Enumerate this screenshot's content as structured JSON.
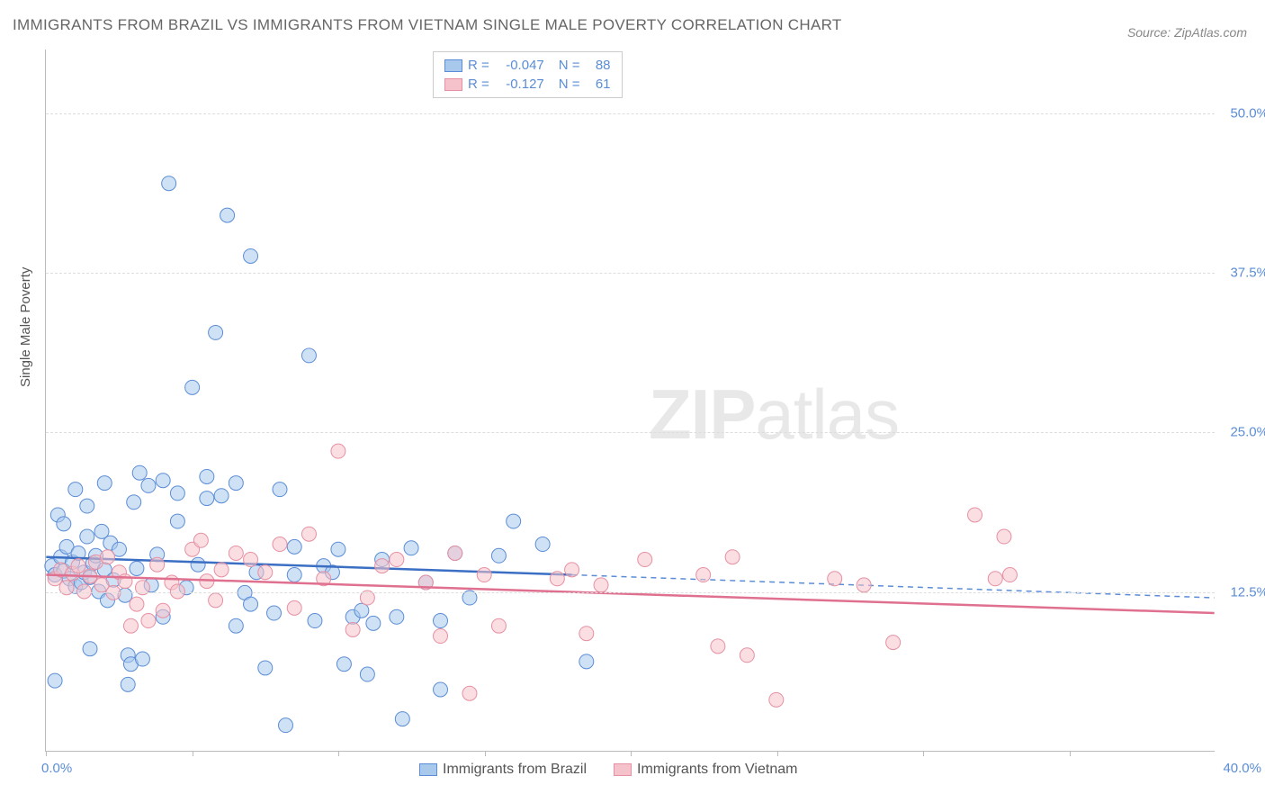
{
  "title": "IMMIGRANTS FROM BRAZIL VS IMMIGRANTS FROM VIETNAM SINGLE MALE POVERTY CORRELATION CHART",
  "source": "Source: ZipAtlas.com",
  "ylabel": "Single Male Poverty",
  "watermark_bold": "ZIP",
  "watermark_light": "atlas",
  "chart": {
    "type": "scatter",
    "xlim": [
      0,
      40
    ],
    "ylim": [
      0,
      55
    ],
    "yticks": [
      12.5,
      25.0,
      37.5,
      50.0
    ],
    "ytick_labels": [
      "12.5%",
      "25.0%",
      "37.5%",
      "50.0%"
    ],
    "xtick_left": "0.0%",
    "xtick_right": "40.0%",
    "xtick_marks": [
      0,
      5,
      10,
      15,
      20,
      25,
      30,
      35
    ],
    "background_color": "#ffffff",
    "grid_color": "#dddddd",
    "axis_color": "#bbbbbb",
    "tick_label_color": "#5b8dd6",
    "marker_radius": 8,
    "marker_opacity": 0.55,
    "line_width": 2.5,
    "dashed_line_width": 1.5
  },
  "series": [
    {
      "name": "Immigrants from Brazil",
      "color_fill": "#a8c8ec",
      "color_stroke": "#5b8dd6",
      "line_color": "#3b6fc4",
      "R": "-0.047",
      "N": "88",
      "trend_x1": 0,
      "trend_y1": 15.2,
      "trend_x2": 18,
      "trend_y2": 13.8,
      "trend_dash_x2": 40,
      "trend_dash_y2": 12.0,
      "points": [
        [
          0.2,
          14.5
        ],
        [
          0.3,
          13.8
        ],
        [
          0.5,
          15.2
        ],
        [
          0.6,
          14.1
        ],
        [
          0.7,
          16.0
        ],
        [
          0.8,
          13.5
        ],
        [
          0.9,
          14.8
        ],
        [
          1.0,
          12.9
        ],
        [
          1.1,
          15.5
        ],
        [
          1.2,
          13.2
        ],
        [
          1.3,
          14.0
        ],
        [
          1.4,
          16.8
        ],
        [
          1.5,
          13.6
        ],
        [
          1.6,
          14.7
        ],
        [
          1.7,
          15.3
        ],
        [
          1.8,
          12.5
        ],
        [
          1.9,
          17.2
        ],
        [
          2.0,
          14.2
        ],
        [
          2.1,
          11.8
        ],
        [
          2.2,
          16.3
        ],
        [
          2.3,
          13.4
        ],
        [
          2.5,
          15.8
        ],
        [
          2.7,
          12.2
        ],
        [
          2.8,
          7.5
        ],
        [
          2.9,
          6.8
        ],
        [
          3.0,
          19.5
        ],
        [
          3.1,
          14.3
        ],
        [
          3.3,
          7.2
        ],
        [
          3.5,
          20.8
        ],
        [
          3.6,
          13.0
        ],
        [
          3.8,
          15.4
        ],
        [
          4.0,
          10.5
        ],
        [
          4.2,
          44.5
        ],
        [
          4.5,
          20.2
        ],
        [
          4.8,
          12.8
        ],
        [
          5.0,
          28.5
        ],
        [
          5.2,
          14.6
        ],
        [
          5.5,
          21.5
        ],
        [
          5.8,
          32.8
        ],
        [
          6.0,
          20.0
        ],
        [
          6.2,
          42.0
        ],
        [
          6.5,
          9.8
        ],
        [
          6.8,
          12.4
        ],
        [
          7.0,
          38.8
        ],
        [
          7.2,
          14.0
        ],
        [
          7.5,
          6.5
        ],
        [
          7.8,
          10.8
        ],
        [
          8.0,
          20.5
        ],
        [
          8.2,
          2.0
        ],
        [
          8.5,
          13.8
        ],
        [
          9.0,
          31.0
        ],
        [
          9.2,
          10.2
        ],
        [
          9.5,
          14.5
        ],
        [
          10.0,
          15.8
        ],
        [
          10.2,
          6.8
        ],
        [
          10.5,
          10.5
        ],
        [
          10.8,
          11.0
        ],
        [
          11.2,
          10.0
        ],
        [
          11.5,
          15.0
        ],
        [
          12.0,
          10.5
        ],
        [
          12.2,
          2.5
        ],
        [
          12.5,
          15.9
        ],
        [
          13.0,
          13.2
        ],
        [
          13.5,
          4.8
        ],
        [
          14.0,
          15.5
        ],
        [
          15.5,
          15.3
        ],
        [
          16.0,
          18.0
        ],
        [
          17.0,
          16.2
        ],
        [
          18.5,
          7.0
        ],
        [
          0.4,
          18.5
        ],
        [
          0.6,
          17.8
        ],
        [
          1.0,
          20.5
        ],
        [
          1.4,
          19.2
        ],
        [
          2.0,
          21.0
        ],
        [
          3.2,
          21.8
        ],
        [
          4.0,
          21.2
        ],
        [
          0.3,
          5.5
        ],
        [
          1.5,
          8.0
        ],
        [
          2.8,
          5.2
        ],
        [
          4.5,
          18.0
        ],
        [
          5.5,
          19.8
        ],
        [
          6.5,
          21.0
        ],
        [
          7.0,
          11.5
        ],
        [
          8.5,
          16.0
        ],
        [
          9.8,
          14.0
        ],
        [
          11.0,
          6.0
        ],
        [
          13.5,
          10.2
        ],
        [
          14.5,
          12.0
        ]
      ]
    },
    {
      "name": "Immigrants from Vietnam",
      "color_fill": "#f5c2cb",
      "color_stroke": "#e690a3",
      "line_color": "#e0708f",
      "R": "-0.127",
      "N": "61",
      "trend_x1": 0,
      "trend_y1": 13.8,
      "trend_x2": 40,
      "trend_y2": 10.8,
      "points": [
        [
          0.3,
          13.5
        ],
        [
          0.5,
          14.2
        ],
        [
          0.7,
          12.8
        ],
        [
          0.9,
          13.9
        ],
        [
          1.1,
          14.5
        ],
        [
          1.3,
          12.5
        ],
        [
          1.5,
          13.7
        ],
        [
          1.7,
          14.8
        ],
        [
          1.9,
          13.0
        ],
        [
          2.1,
          15.2
        ],
        [
          2.3,
          12.4
        ],
        [
          2.5,
          14.0
        ],
        [
          2.7,
          13.3
        ],
        [
          2.9,
          9.8
        ],
        [
          3.1,
          11.5
        ],
        [
          3.3,
          12.8
        ],
        [
          3.5,
          10.2
        ],
        [
          3.8,
          14.6
        ],
        [
          4.0,
          11.0
        ],
        [
          4.3,
          13.2
        ],
        [
          4.5,
          12.5
        ],
        [
          5.0,
          15.8
        ],
        [
          5.3,
          16.5
        ],
        [
          5.5,
          13.3
        ],
        [
          5.8,
          11.8
        ],
        [
          6.0,
          14.2
        ],
        [
          6.5,
          15.5
        ],
        [
          7.0,
          15.0
        ],
        [
          7.5,
          14.0
        ],
        [
          8.0,
          16.2
        ],
        [
          8.5,
          11.2
        ],
        [
          9.0,
          17.0
        ],
        [
          9.5,
          13.5
        ],
        [
          10.0,
          23.5
        ],
        [
          10.5,
          9.5
        ],
        [
          11.0,
          12.0
        ],
        [
          11.5,
          14.5
        ],
        [
          12.0,
          15.0
        ],
        [
          13.0,
          13.2
        ],
        [
          13.5,
          9.0
        ],
        [
          14.0,
          15.5
        ],
        [
          14.5,
          4.5
        ],
        [
          15.0,
          13.8
        ],
        [
          15.5,
          9.8
        ],
        [
          17.5,
          13.5
        ],
        [
          18.0,
          14.2
        ],
        [
          18.5,
          9.2
        ],
        [
          19.0,
          13.0
        ],
        [
          20.5,
          15.0
        ],
        [
          22.5,
          13.8
        ],
        [
          23.0,
          8.2
        ],
        [
          23.5,
          15.2
        ],
        [
          24.0,
          7.5
        ],
        [
          25.0,
          4.0
        ],
        [
          27.0,
          13.5
        ],
        [
          28.0,
          13.0
        ],
        [
          29.0,
          8.5
        ],
        [
          31.8,
          18.5
        ],
        [
          32.5,
          13.5
        ],
        [
          32.8,
          16.8
        ],
        [
          33.0,
          13.8
        ]
      ]
    }
  ],
  "legend_bottom": [
    {
      "swatch_fill": "#a8c8ec",
      "swatch_stroke": "#5b8dd6",
      "label": "Immigrants from Brazil"
    },
    {
      "swatch_fill": "#f5c2cb",
      "swatch_stroke": "#e690a3",
      "label": "Immigrants from Vietnam"
    }
  ]
}
